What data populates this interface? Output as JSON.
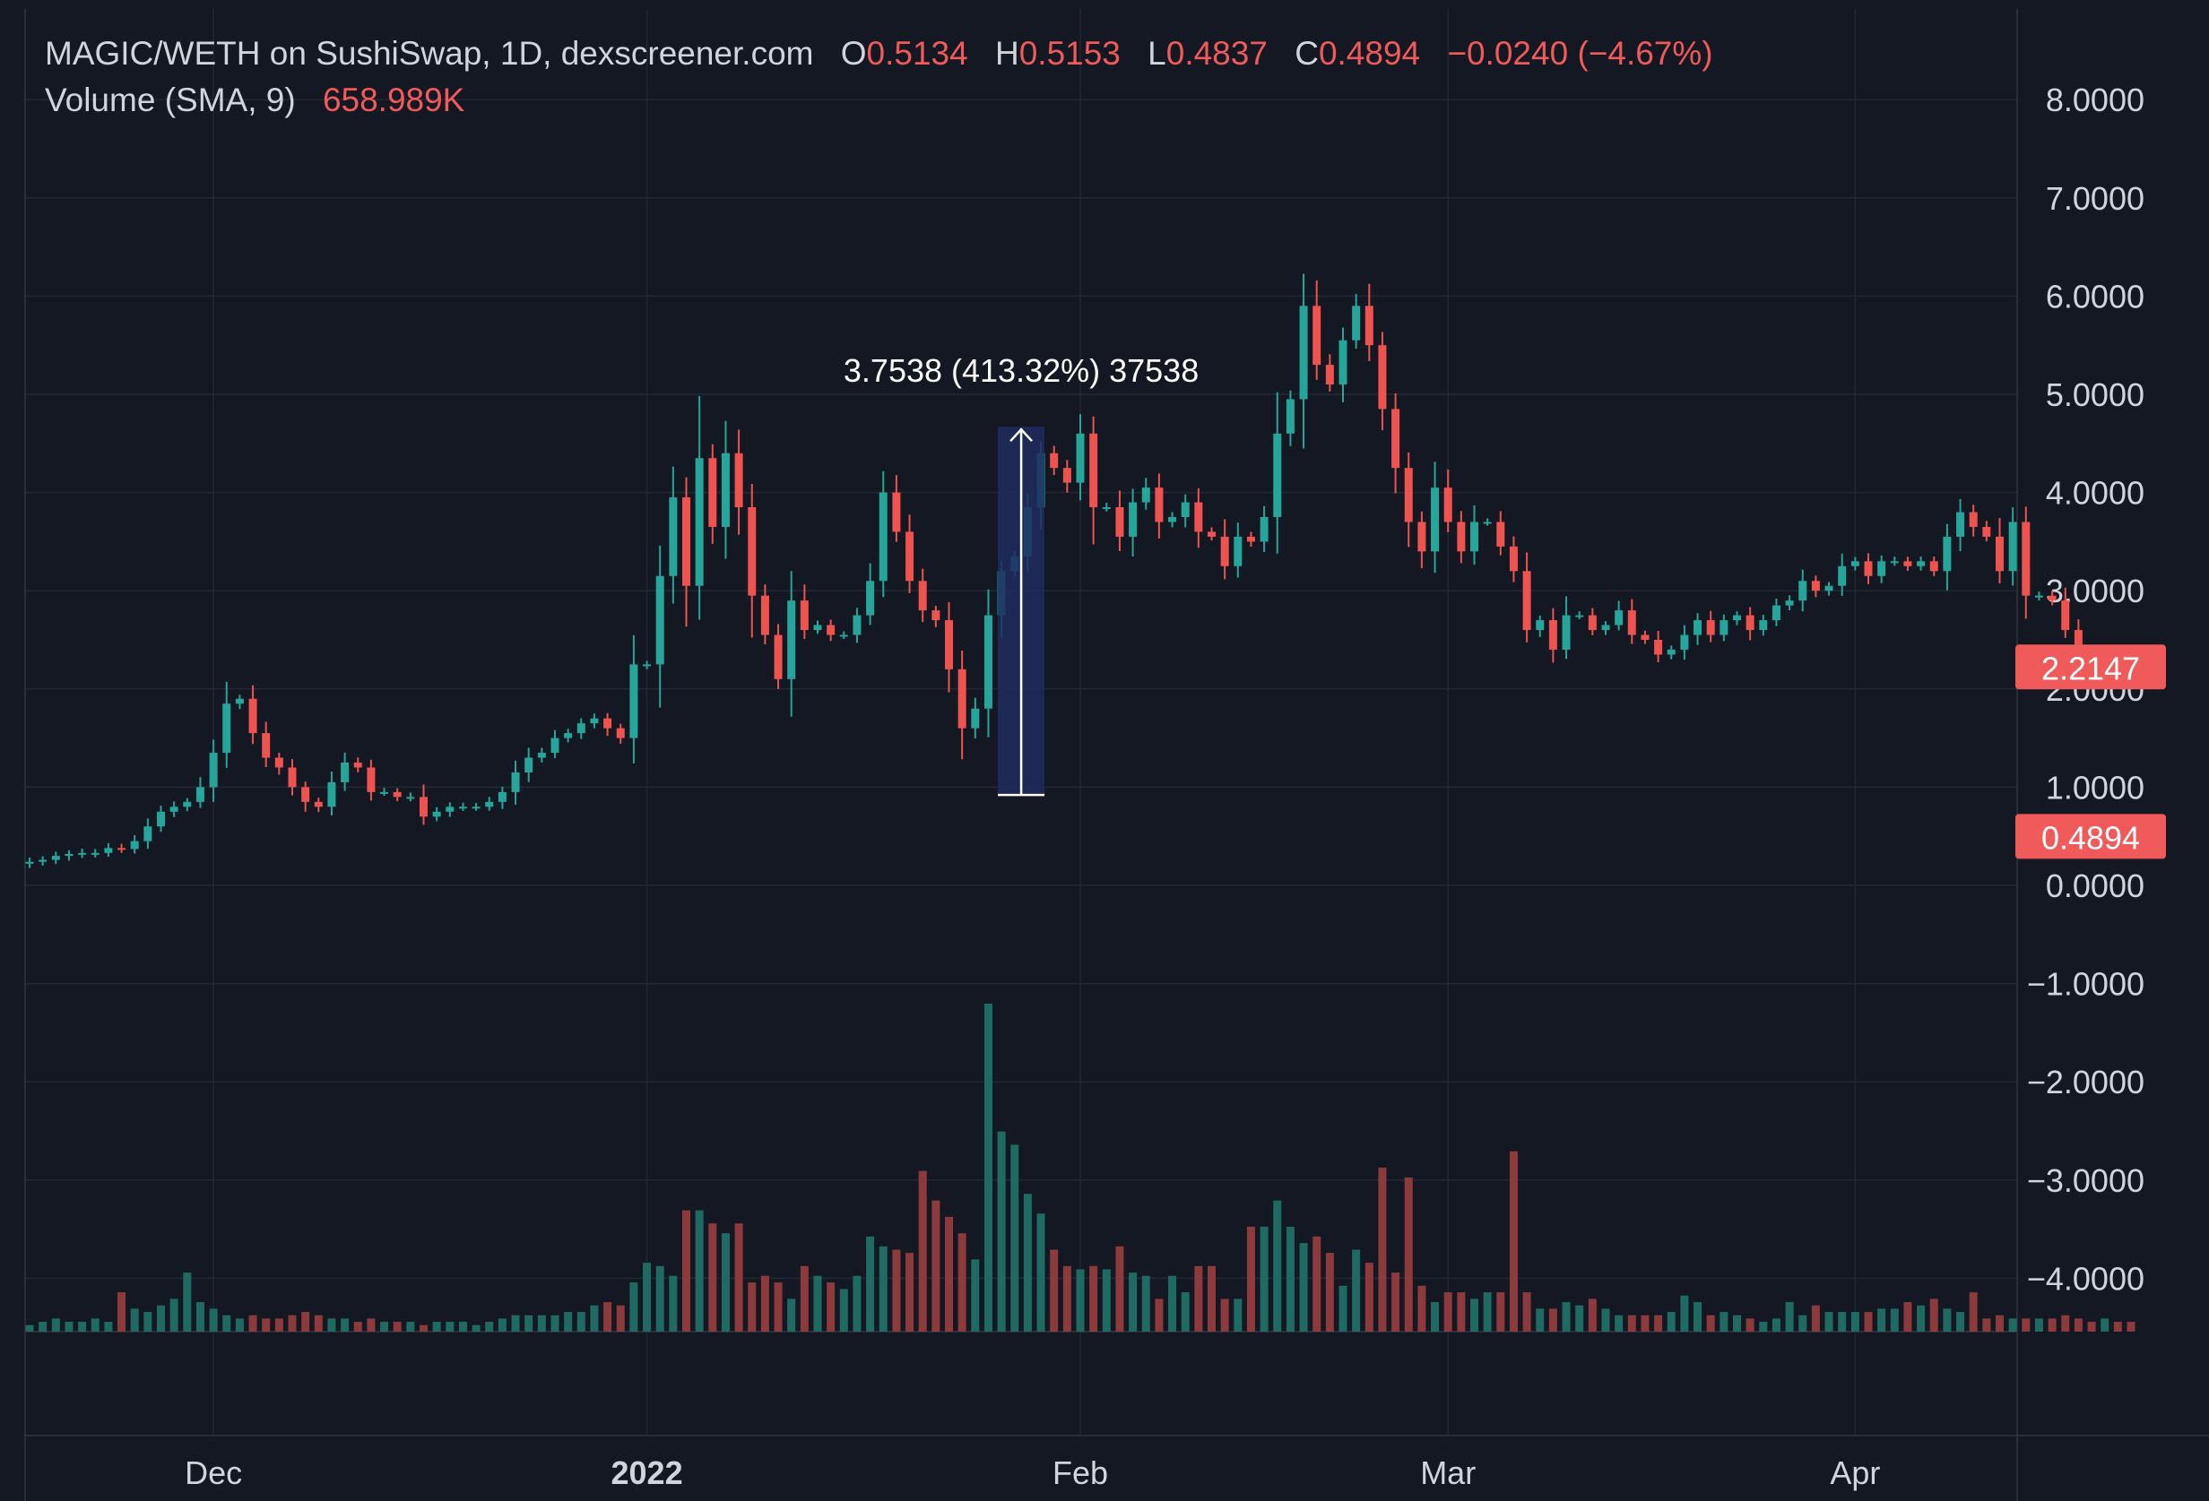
{
  "header": {
    "title": "MAGIC/WETH on SushiSwap, 1D, dexscreener.com",
    "ohlc": [
      {
        "key": "O",
        "value": "0.5134"
      },
      {
        "key": "H",
        "value": "0.5153"
      },
      {
        "key": "L",
        "value": "0.4837"
      },
      {
        "key": "C",
        "value": "0.4894"
      }
    ],
    "change": "−0.0240 (−4.67%)",
    "volume_label": "Volume (SMA, 9)",
    "volume_value": "658.989K"
  },
  "colors": {
    "background": "#141823",
    "grid": "#232734",
    "up": "#26a69a",
    "down": "#ef5350",
    "volume_up": "#1f6b64",
    "volume_down": "#8c3a3c",
    "text": "#d1d4dc",
    "label_bg": "#f05a5a",
    "measure_fill": "#1e2c5e"
  },
  "chart_data": {
    "type": "candlestick",
    "title": "MAGIC/WETH on SushiSwap, 1D, dexscreener.com",
    "interval": "1D",
    "y_axis_ticks": [
      "8.0000",
      "7.0000",
      "6.0000",
      "5.0000",
      "4.0000",
      "3.0000",
      "2.0000",
      "1.0000",
      "0.0000",
      "−1.0000",
      "−2.0000",
      "−3.0000",
      "−4.0000"
    ],
    "x_axis_ticks": [
      {
        "label": "Dec",
        "index": 14,
        "bold": false
      },
      {
        "label": "2022",
        "index": 47,
        "bold": true
      },
      {
        "label": "Feb",
        "index": 80,
        "bold": false
      },
      {
        "label": "Mar",
        "index": 108,
        "bold": false
      },
      {
        "label": "Apr",
        "index": 139,
        "bold": false
      }
    ],
    "price_labels": [
      {
        "value": 2.2147,
        "text": "2.2147"
      },
      {
        "value": 0.4894,
        "text": "0.4894"
      }
    ],
    "grid": true,
    "measure": {
      "from_price": 0.92,
      "to_price": 4.67,
      "start_index": 74,
      "end_index": 77,
      "label": "3.7538 (413.32%) 37538"
    },
    "close": [
      0.24,
      0.26,
      0.3,
      0.32,
      0.33,
      0.33,
      0.38,
      0.37,
      0.45,
      0.6,
      0.75,
      0.8,
      0.85,
      1.0,
      1.35,
      1.85,
      1.9,
      1.55,
      1.3,
      1.2,
      1.0,
      0.85,
      0.8,
      1.05,
      1.25,
      1.2,
      0.95,
      0.95,
      0.9,
      0.9,
      0.7,
      0.75,
      0.8,
      0.8,
      0.8,
      0.85,
      0.95,
      1.15,
      1.3,
      1.35,
      1.5,
      1.55,
      1.65,
      1.7,
      1.6,
      1.5,
      2.25,
      2.25,
      3.15,
      3.95,
      3.05,
      4.35,
      3.65,
      4.4,
      3.85,
      2.95,
      2.55,
      2.1,
      2.9,
      2.6,
      2.65,
      2.55,
      2.55,
      2.75,
      3.1,
      4.0,
      3.6,
      3.1,
      2.8,
      2.7,
      2.2,
      1.6,
      1.8,
      2.75,
      3.2,
      3.35,
      3.85,
      4.4,
      4.25,
      4.1,
      4.6,
      3.85,
      3.85,
      3.55,
      3.9,
      4.05,
      3.7,
      3.75,
      3.9,
      3.6,
      3.55,
      3.25,
      3.55,
      3.5,
      3.75,
      4.6,
      4.95,
      5.9,
      5.3,
      5.1,
      5.55,
      5.9,
      5.5,
      4.85,
      4.25,
      3.7,
      3.4,
      4.05,
      3.7,
      3.4,
      3.7,
      3.7,
      3.45,
      3.2,
      2.6,
      2.7,
      2.4,
      2.75,
      2.75,
      2.6,
      2.65,
      2.8,
      2.55,
      2.5,
      2.35,
      2.4,
      2.55,
      2.7,
      2.55,
      2.7,
      2.75,
      2.6,
      2.7,
      2.85,
      2.9,
      3.1,
      3.0,
      3.05,
      3.25,
      3.3,
      3.15,
      3.3,
      3.3,
      3.25,
      3.3,
      3.2,
      3.55,
      3.8,
      3.65,
      3.55,
      3.2,
      3.7,
      2.95,
      2.95,
      2.9,
      2.6,
      2.35,
      2.3,
      2.3,
      2.25,
      2.21
    ],
    "volume_relative": [
      0.02,
      0.03,
      0.04,
      0.03,
      0.03,
      0.04,
      0.03,
      0.12,
      0.07,
      0.06,
      0.08,
      0.1,
      0.18,
      0.09,
      0.07,
      0.05,
      0.04,
      0.05,
      0.04,
      0.04,
      0.05,
      0.06,
      0.05,
      0.04,
      0.04,
      0.03,
      0.04,
      0.03,
      0.03,
      0.03,
      0.02,
      0.03,
      0.03,
      0.03,
      0.02,
      0.03,
      0.04,
      0.05,
      0.05,
      0.05,
      0.05,
      0.06,
      0.06,
      0.08,
      0.09,
      0.08,
      0.15,
      0.21,
      0.2,
      0.17,
      0.37,
      0.37,
      0.33,
      0.3,
      0.33,
      0.15,
      0.17,
      0.15,
      0.1,
      0.2,
      0.17,
      0.15,
      0.13,
      0.17,
      0.29,
      0.26,
      0.25,
      0.24,
      0.49,
      0.4,
      0.35,
      0.3,
      0.22,
      1.0,
      0.61,
      0.57,
      0.42,
      0.36,
      0.25,
      0.2,
      0.19,
      0.2,
      0.19,
      0.26,
      0.18,
      0.17,
      0.1,
      0.17,
      0.12,
      0.2,
      0.2,
      0.1,
      0.1,
      0.32,
      0.32,
      0.4,
      0.32,
      0.27,
      0.29,
      0.24,
      0.14,
      0.25,
      0.21,
      0.5,
      0.18,
      0.47,
      0.14,
      0.09,
      0.12,
      0.12,
      0.1,
      0.12,
      0.12,
      0.55,
      0.12,
      0.07,
      0.07,
      0.09,
      0.08,
      0.1,
      0.07,
      0.05,
      0.05,
      0.05,
      0.05,
      0.06,
      0.11,
      0.09,
      0.05,
      0.06,
      0.05,
      0.04,
      0.03,
      0.04,
      0.09,
      0.05,
      0.08,
      0.06,
      0.06,
      0.06,
      0.06,
      0.07,
      0.07,
      0.09,
      0.08,
      0.1,
      0.07,
      0.06,
      0.12,
      0.04,
      0.05,
      0.04,
      0.04,
      0.04,
      0.04,
      0.05,
      0.04,
      0.03,
      0.04,
      0.03,
      0.03
    ]
  }
}
